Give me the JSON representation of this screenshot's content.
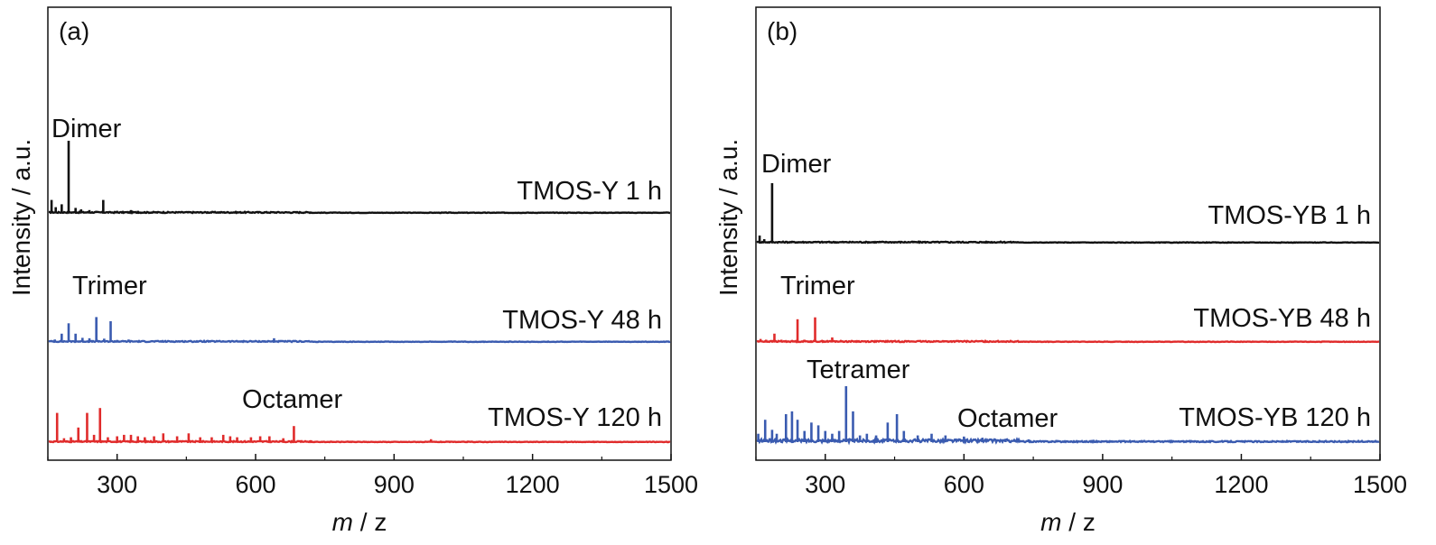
{
  "chart_data": [
    {
      "panel": "(a)",
      "type": "line",
      "xlabel_italic": "m",
      "xlabel_rest": " / z",
      "ylabel": "Intensity / a.u.",
      "xlim": [
        150,
        1500
      ],
      "xticks": [
        300,
        600,
        900,
        1200,
        1500
      ],
      "tick_labels": [
        "300",
        "600",
        "900",
        "1200",
        "1500"
      ],
      "series": [
        {
          "name": "TMOS-Y 1 h",
          "color": "#111111",
          "peaks": [
            [
              158,
              0.18
            ],
            [
              167,
              0.08
            ],
            [
              180,
              0.12
            ],
            [
              195,
              1.0
            ],
            [
              210,
              0.07
            ],
            [
              222,
              0.05
            ],
            [
              240,
              0.04
            ],
            [
              255,
              0.03
            ],
            [
              270,
              0.18
            ],
            [
              300,
              0.03
            ],
            [
              330,
              0.04
            ],
            [
              345,
              0.03
            ],
            [
              360,
              0.02
            ]
          ]
        },
        {
          "name": "TMOS-Y 48 h",
          "color": "#3a5bb0",
          "peaks": [
            [
              165,
              0.06
            ],
            [
              180,
              0.2
            ],
            [
              195,
              0.45
            ],
            [
              210,
              0.2
            ],
            [
              225,
              0.1
            ],
            [
              240,
              0.09
            ],
            [
              255,
              0.6
            ],
            [
              272,
              0.08
            ],
            [
              286,
              0.5
            ],
            [
              300,
              0.05
            ],
            [
              325,
              0.06
            ],
            [
              400,
              0.03
            ],
            [
              500,
              0.03
            ],
            [
              640,
              0.09
            ]
          ]
        },
        {
          "name": "TMOS-Y 120 h",
          "color": "#e02b2b",
          "peaks": [
            [
              170,
              0.6
            ],
            [
              185,
              0.08
            ],
            [
              200,
              0.1
            ],
            [
              216,
              0.3
            ],
            [
              235,
              0.6
            ],
            [
              250,
              0.15
            ],
            [
              263,
              0.7
            ],
            [
              280,
              0.1
            ],
            [
              300,
              0.12
            ],
            [
              315,
              0.15
            ],
            [
              330,
              0.15
            ],
            [
              345,
              0.12
            ],
            [
              360,
              0.1
            ],
            [
              380,
              0.12
            ],
            [
              400,
              0.18
            ],
            [
              430,
              0.12
            ],
            [
              455,
              0.18
            ],
            [
              480,
              0.1
            ],
            [
              505,
              0.1
            ],
            [
              530,
              0.15
            ],
            [
              545,
              0.12
            ],
            [
              560,
              0.1
            ],
            [
              590,
              0.1
            ],
            [
              610,
              0.12
            ],
            [
              630,
              0.12
            ],
            [
              660,
              0.08
            ],
            [
              683,
              0.33
            ],
            [
              720,
              0.04
            ],
            [
              800,
              0.03
            ],
            [
              980,
              0.06
            ],
            [
              1060,
              0.03
            ]
          ]
        }
      ],
      "annotations": [
        {
          "text": "Dimer",
          "series": 0
        },
        {
          "text": "Trimer",
          "series": 1
        },
        {
          "text": "Octamer",
          "series": 2
        }
      ]
    },
    {
      "panel": "(b)",
      "type": "line",
      "xlabel_italic": "m",
      "xlabel_rest": " / z",
      "ylabel": "Intensity / a.u.",
      "xlim": [
        150,
        1500
      ],
      "xticks": [
        300,
        600,
        900,
        1200,
        1500
      ],
      "tick_labels": [
        "300",
        "600",
        "900",
        "1200",
        "1500"
      ],
      "series": [
        {
          "name": "TMOS-YB 1 h",
          "color": "#111111",
          "peaks": [
            [
              158,
              0.12
            ],
            [
              168,
              0.06
            ],
            [
              185,
              1.0
            ],
            [
              200,
              0.03
            ],
            [
              230,
              0.02
            ]
          ]
        },
        {
          "name": "TMOS-YB 48 h",
          "color": "#e02b2b",
          "peaks": [
            [
              160,
              0.08
            ],
            [
              172,
              0.06
            ],
            [
              190,
              0.22
            ],
            [
              205,
              0.06
            ],
            [
              240,
              0.6
            ],
            [
              255,
              0.06
            ],
            [
              278,
              0.65
            ],
            [
              295,
              0.05
            ],
            [
              315,
              0.12
            ],
            [
              360,
              0.04
            ],
            [
              400,
              0.03
            ],
            [
              640,
              0.05
            ]
          ]
        },
        {
          "name": "TMOS-YB 120 h",
          "color": "#3a5bb0",
          "peaks": [
            [
              155,
              0.15
            ],
            [
              170,
              0.4
            ],
            [
              185,
              0.22
            ],
            [
              195,
              0.15
            ],
            [
              215,
              0.5
            ],
            [
              228,
              0.55
            ],
            [
              240,
              0.4
            ],
            [
              255,
              0.2
            ],
            [
              270,
              0.35
            ],
            [
              285,
              0.3
            ],
            [
              300,
              0.2
            ],
            [
              315,
              0.15
            ],
            [
              330,
              0.2
            ],
            [
              345,
              1.0
            ],
            [
              360,
              0.55
            ],
            [
              375,
              0.12
            ],
            [
              390,
              0.15
            ],
            [
              410,
              0.12
            ],
            [
              435,
              0.35
            ],
            [
              455,
              0.5
            ],
            [
              470,
              0.2
            ],
            [
              500,
              0.12
            ],
            [
              530,
              0.15
            ],
            [
              560,
              0.12
            ],
            [
              600,
              0.1
            ],
            [
              640,
              0.08
            ],
            [
              690,
              0.06
            ],
            [
              740,
              0.05
            ],
            [
              800,
              0.04
            ],
            [
              900,
              0.03
            ],
            [
              990,
              0.04
            ],
            [
              1100,
              0.03
            ]
          ]
        }
      ],
      "annotations": [
        {
          "text": "Dimer",
          "series": 0
        },
        {
          "text": "Trimer",
          "series": 1
        },
        {
          "text": "Tetramer",
          "series": 2
        },
        {
          "text": "Octamer",
          "series": 2
        }
      ]
    }
  ]
}
